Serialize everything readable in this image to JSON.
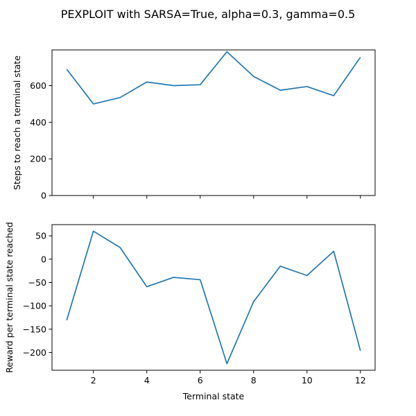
{
  "title": "PEXPLOIT with SARSA=True, alpha=0.3, gamma=0.5",
  "chart_data": [
    {
      "type": "line",
      "title": "",
      "xlabel": "",
      "ylabel": "Steps to reach a terminal state",
      "x": [
        1,
        2,
        3,
        4,
        5,
        6,
        7,
        8,
        9,
        10,
        11,
        12
      ],
      "values": [
        690,
        500,
        535,
        620,
        600,
        605,
        785,
        650,
        575,
        595,
        545,
        755
      ],
      "xlim": [
        0.45,
        12.55
      ],
      "ylim": [
        0,
        795
      ],
      "yticks": [
        0,
        200,
        400,
        600
      ],
      "xticks": [
        2,
        4,
        6,
        8,
        10,
        12
      ],
      "show_xtick_labels": false,
      "grid": false,
      "color": "#1f77b4"
    },
    {
      "type": "line",
      "title": "",
      "xlabel": "Terminal state",
      "ylabel": "Reward per terminal state reached",
      "x": [
        1,
        2,
        3,
        4,
        5,
        6,
        7,
        8,
        9,
        10,
        11,
        12
      ],
      "values": [
        -131,
        60,
        25,
        -59,
        -39,
        -44,
        -224,
        -91,
        -15,
        -35,
        17,
        -196
      ],
      "xlim": [
        0.45,
        12.55
      ],
      "ylim": [
        -238,
        74
      ],
      "yticks": [
        -200,
        -150,
        -100,
        -50,
        0,
        50
      ],
      "xticks": [
        2,
        4,
        6,
        8,
        10,
        12
      ],
      "show_xtick_labels": true,
      "grid": false,
      "color": "#1f77b4"
    }
  ]
}
